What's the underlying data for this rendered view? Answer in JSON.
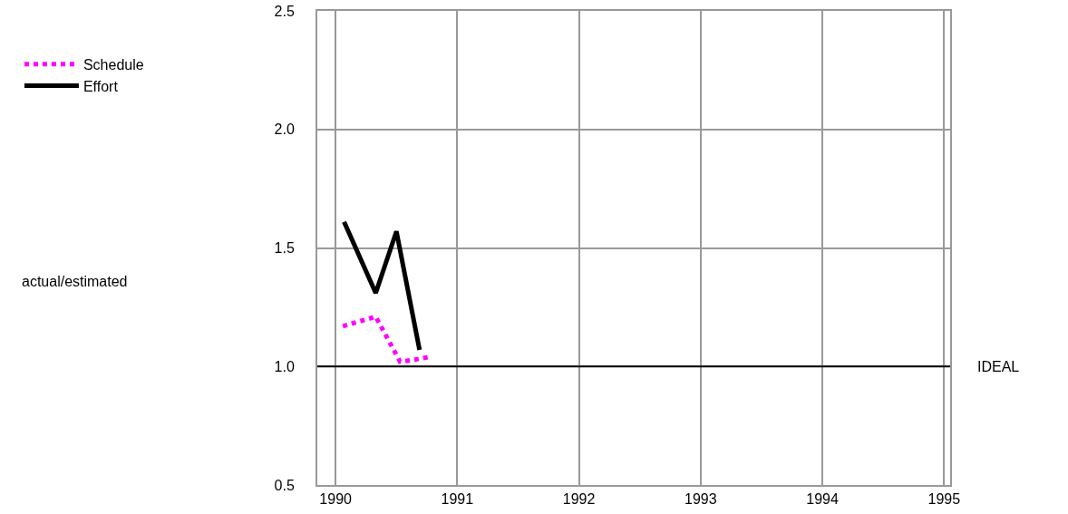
{
  "chart_data": {
    "type": "line",
    "annotations": [
      "actual/estimated"
    ],
    "series": [
      {
        "name": "Schedule",
        "color": "#ff00ff",
        "line_style": "dotted",
        "x": [
          1990.06,
          1990.33,
          1990.53,
          1990.66,
          1990.77
        ],
        "values": [
          1.17,
          1.21,
          1.02,
          1.03,
          1.04
        ]
      },
      {
        "name": "Effort",
        "color": "#000000",
        "line_style": "solid",
        "x": [
          1990.07,
          1990.33,
          1990.5,
          1990.69
        ],
        "values": [
          1.61,
          1.31,
          1.57,
          1.07
        ]
      }
    ],
    "xlim": [
      1989.85,
      1995.05
    ],
    "xticks": [
      1990,
      1991,
      1992,
      1993,
      1994,
      1995
    ],
    "ylim": [
      0.5,
      2.5
    ],
    "yticks": [
      0.5,
      {
        "value": 1,
        "label": "1.0"
      },
      1.5,
      {
        "value": 2,
        "label": "2.0"
      },
      2.5
    ],
    "ref_lines": [
      {
        "axis": "y",
        "value": 1,
        "label": "IDEAL",
        "color": "#000000"
      }
    ],
    "grid": true,
    "legend": "left",
    "marker": "none"
  }
}
